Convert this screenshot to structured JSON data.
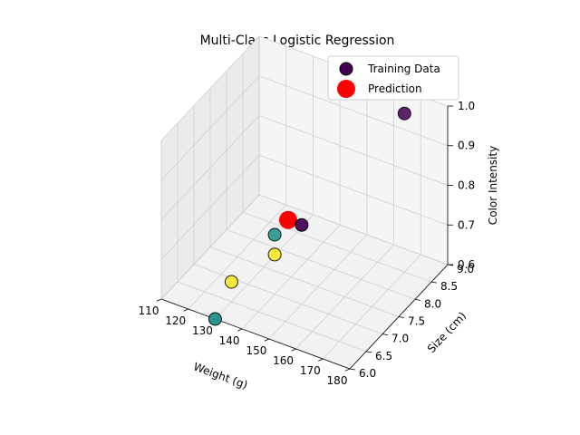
{
  "chart_data": {
    "type": "scatter",
    "title": "Multi-Class Logistic Regression",
    "xlabel": "Weight (g)",
    "ylabel": "Size (cm)",
    "zlabel": "Color Intensity",
    "xlim": [
      110,
      180
    ],
    "ylim": [
      6.0,
      9.0
    ],
    "zlim": [
      0.6,
      1.0
    ],
    "x_ticks": [
      "110",
      "120",
      "130",
      "140",
      "150",
      "160",
      "170",
      "180"
    ],
    "y_ticks": [
      "6.0",
      "6.5",
      "7.0",
      "7.5",
      "8.0",
      "8.5",
      "9.0"
    ],
    "z_ticks": [
      "0.6",
      "0.7",
      "0.8",
      "0.9",
      "1.0"
    ],
    "grid": true,
    "legend": {
      "placement": "top-right",
      "entries": [
        {
          "label": "Training Data",
          "color": "#440154"
        },
        {
          "label": "Prediction",
          "color": "#ff0000"
        }
      ]
    },
    "series": [
      {
        "name": "Training Data",
        "points": [
          {
            "x": 150,
            "y": 7.0,
            "z": 0.8,
            "class": 0,
            "color": "#440154"
          },
          {
            "x": 170,
            "y": 8.5,
            "z": 1.0,
            "class": 0,
            "color": "#440154"
          },
          {
            "x": 130,
            "y": 6.0,
            "z": 0.6,
            "class": 1,
            "color": "#21918c"
          },
          {
            "x": 140,
            "y": 7.0,
            "z": 0.75,
            "class": 1,
            "color": "#21918c"
          },
          {
            "x": 130,
            "y": 6.5,
            "z": 0.65,
            "class": 2,
            "color": "#fde725"
          },
          {
            "x": 140,
            "y": 7.0,
            "z": 0.7,
            "class": 2,
            "color": "#fde725"
          }
        ]
      },
      {
        "name": "Prediction",
        "points": [
          {
            "x": 145,
            "y": 7.0,
            "z": 0.8,
            "color": "#ff0000"
          }
        ]
      }
    ]
  }
}
